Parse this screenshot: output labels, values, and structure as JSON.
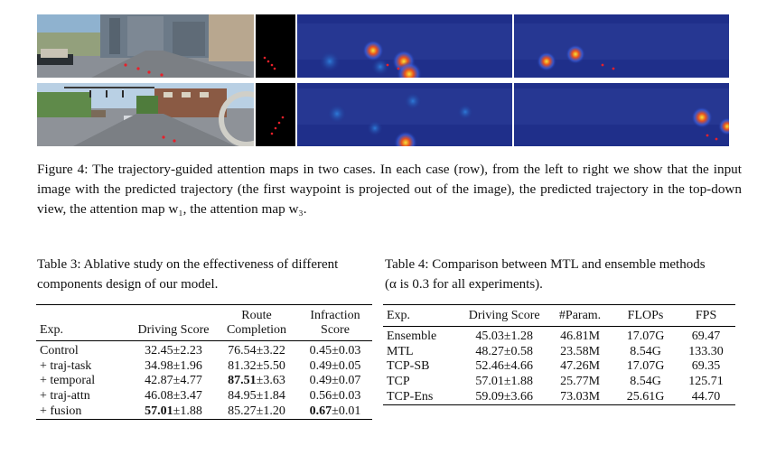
{
  "figure": {
    "label": "Figure 4:",
    "caption": "The trajectory-guided attention maps in two cases. In each case (row), from the left to right we show that the input image with the predicted trajectory (the first waypoint is projected out of the image), the predicted trajectory in the top-down view, the attention map w₁, the attention map w₃."
  },
  "table3": {
    "caption": "Table 3: Ablative study on the effectiveness of different components design of our model.",
    "headers": [
      "Exp.",
      "Driving Score",
      "Route Completion",
      "Infraction Score"
    ],
    "rows": [
      [
        "Control",
        "32.45±2.23",
        "76.54±3.22",
        "0.45±0.03"
      ],
      [
        "+ traj-task",
        "34.98±1.96",
        "81.32±5.50",
        "0.49±0.05"
      ],
      [
        "+ temporal",
        "42.87±4.77",
        "87.51±3.63",
        "0.49±0.07"
      ],
      [
        "+ traj-attn",
        "46.08±3.47",
        "84.95±1.84",
        "0.56±0.03"
      ],
      [
        "+ fusion",
        "57.01±1.88",
        "85.27±1.20",
        "0.67±0.01"
      ]
    ]
  },
  "table4": {
    "caption": "Table 4: Comparison between MTL and ensemble methods (α is 0.3 for all experiments).",
    "headers": [
      "Exp.",
      "Driving Score",
      "#Param.",
      "FLOPs",
      "FPS"
    ],
    "rows": [
      [
        "Ensemble",
        "45.03±1.28",
        "46.81M",
        "17.07G",
        "69.47"
      ],
      [
        "MTL",
        "48.27±0.58",
        "23.58M",
        "8.54G",
        "133.30"
      ],
      [
        "TCP-SB",
        "52.46±4.66",
        "47.26M",
        "17.07G",
        "69.35"
      ],
      [
        "TCP",
        "57.01±1.88",
        "25.77M",
        "8.54G",
        "125.71"
      ],
      [
        "TCP-Ens",
        "59.09±3.66",
        "73.03M",
        "25.61G",
        "44.70"
      ]
    ]
  },
  "colors": {
    "attention_bg": "#1f2f8a",
    "trajectory_point": "#e8202a",
    "heat_peak": "#f5e43a"
  }
}
